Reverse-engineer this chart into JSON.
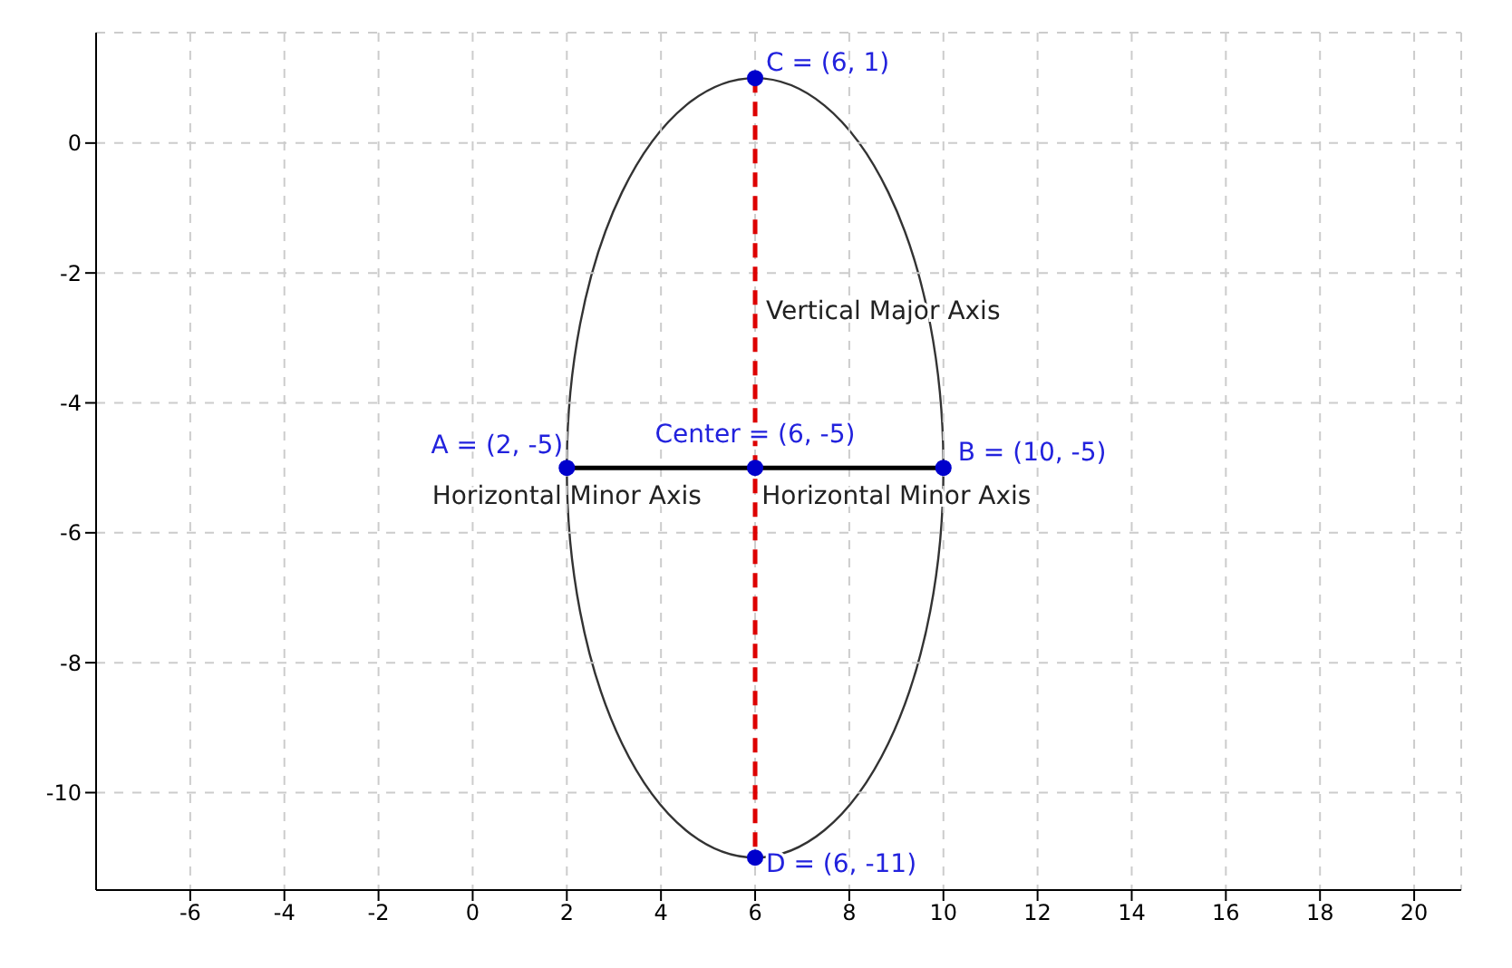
{
  "chart_data": {
    "type": "line",
    "xlim": [
      -8,
      21
    ],
    "ylim": [
      -11.5,
      1.7
    ],
    "xticks": [
      -6,
      -4,
      -2,
      0,
      2,
      4,
      6,
      8,
      10,
      12,
      14,
      16,
      18,
      20
    ],
    "yticks": [
      -10,
      -8,
      -6,
      -4,
      -2,
      0
    ],
    "grid": true,
    "series": [
      {
        "color": "#dd0000",
        "line_style": "dashed",
        "marker": "none",
        "x": [
          6,
          6
        ],
        "values": [
          1,
          -11
        ]
      },
      {
        "color": "#000000",
        "line_style": "solid",
        "marker": "none",
        "x": [
          2,
          10
        ],
        "values": [
          -5,
          -5
        ]
      },
      {
        "type": "scatter",
        "color": "#0000cc",
        "marker": "circle",
        "x": [
          6,
          6,
          2,
          10,
          6
        ],
        "values": [
          1,
          -11,
          -5,
          -5,
          -5
        ]
      }
    ],
    "annotations": [
      {
        "text": "C = (6, 1)",
        "x": 6,
        "y": 1
      },
      {
        "text": "Vertical Major Axis",
        "x": 6,
        "y": -2.6
      },
      {
        "text": "Center = (6, -5)",
        "x": 6,
        "y": -5
      },
      {
        "text": "A = (2, -5)",
        "x": 2,
        "y": -5
      },
      {
        "text": "B = (10, -5)",
        "x": 10,
        "y": -5
      },
      {
        "text": "Horizontal Minor Axis",
        "x": 2,
        "y": -5
      },
      {
        "text": "Horizontal Minor Axis",
        "x": 9,
        "y": -5
      },
      {
        "text": "D = (6, -11)",
        "x": 6,
        "y": -11
      }
    ]
  }
}
